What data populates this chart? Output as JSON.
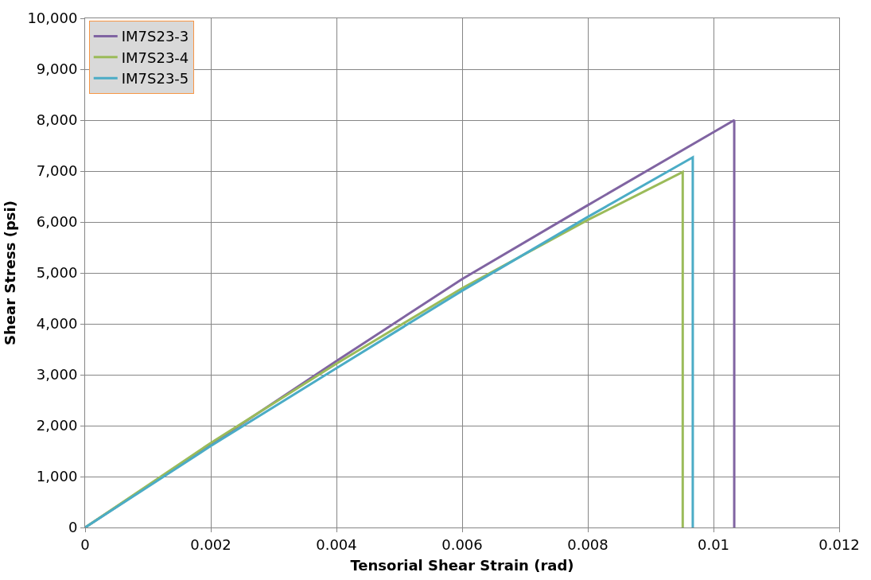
{
  "chart_data": {
    "type": "line",
    "xlabel": "Tensorial Shear Strain (rad)",
    "ylabel": "Shear Stress (psi)",
    "xlim": [
      0,
      0.012
    ],
    "xticks": [
      0,
      0.002,
      0.004,
      0.006,
      0.008,
      0.01,
      0.012
    ],
    "ylim": [
      0,
      10000
    ],
    "yticks": [
      {
        "value": 0,
        "label": "0"
      },
      {
        "value": 1000,
        "label": "1,000"
      },
      {
        "value": 2000,
        "label": "2,000"
      },
      {
        "value": 3000,
        "label": "3,000"
      },
      {
        "value": 4000,
        "label": "4,000"
      },
      {
        "value": 5000,
        "label": "5,000"
      },
      {
        "value": 6000,
        "label": "6,000"
      },
      {
        "value": 7000,
        "label": "7,000"
      },
      {
        "value": 8000,
        "label": "8,000"
      },
      {
        "value": 9000,
        "label": "9,000"
      },
      {
        "value": 10000,
        "label": "10,000"
      }
    ],
    "grid": true,
    "legend": "top left",
    "marker": "none",
    "line_style": "solid",
    "series": [
      {
        "name": "IM7S23-3",
        "color": "#8064a2",
        "x": [
          0,
          0.002,
          0.004,
          0.006,
          0.008,
          0.01033,
          0.01033
        ],
        "values": [
          0,
          1630,
          3270,
          4880,
          6330,
          8000,
          0
        ]
      },
      {
        "name": "IM7S23-4",
        "color": "#9bbb59",
        "x": [
          0,
          0.002,
          0.004,
          0.006,
          0.008,
          0.00951,
          0.00951
        ],
        "values": [
          0,
          1660,
          3220,
          4700,
          6040,
          6980,
          0
        ]
      },
      {
        "name": "IM7S23-5",
        "color": "#4bacc6",
        "x": [
          0,
          0.002,
          0.004,
          0.006,
          0.008,
          0.00967,
          0.00967
        ],
        "values": [
          0,
          1600,
          3130,
          4650,
          6100,
          7270,
          0
        ]
      }
    ]
  }
}
